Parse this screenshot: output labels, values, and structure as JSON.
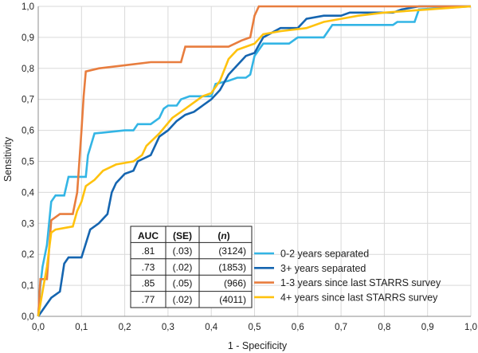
{
  "chart_data": {
    "type": "line",
    "xlabel": "1 - Specificity",
    "ylabel": "Sensitivity",
    "xlim": [
      0,
      1
    ],
    "ylim": [
      0,
      1
    ],
    "x_ticks": [
      "0,0",
      "0,1",
      "0,2",
      "0,3",
      "0,4",
      "0,5",
      "0,6",
      "0,7",
      "0,8",
      "0,9",
      "1,0"
    ],
    "y_ticks": [
      "0,0",
      "0,1",
      "0,2",
      "0,3",
      "0,4",
      "0,5",
      "0,6",
      "0,7",
      "0,8",
      "0,9",
      "1,0"
    ],
    "grid": true,
    "legend_placement": "bottom-right",
    "series": [
      {
        "name": "0-2 years separated",
        "color": "#33b5e5",
        "points": [
          [
            0,
            0
          ],
          [
            0.005,
            0.1
          ],
          [
            0.01,
            0.16
          ],
          [
            0.02,
            0.23
          ],
          [
            0.025,
            0.3
          ],
          [
            0.03,
            0.37
          ],
          [
            0.04,
            0.39
          ],
          [
            0.06,
            0.39
          ],
          [
            0.07,
            0.45
          ],
          [
            0.11,
            0.45
          ],
          [
            0.115,
            0.52
          ],
          [
            0.13,
            0.59
          ],
          [
            0.2,
            0.6
          ],
          [
            0.22,
            0.6
          ],
          [
            0.23,
            0.62
          ],
          [
            0.26,
            0.62
          ],
          [
            0.28,
            0.64
          ],
          [
            0.29,
            0.67
          ],
          [
            0.3,
            0.68
          ],
          [
            0.32,
            0.68
          ],
          [
            0.33,
            0.7
          ],
          [
            0.35,
            0.71
          ],
          [
            0.4,
            0.71
          ],
          [
            0.41,
            0.75
          ],
          [
            0.44,
            0.76
          ],
          [
            0.46,
            0.77
          ],
          [
            0.48,
            0.77
          ],
          [
            0.49,
            0.78
          ],
          [
            0.5,
            0.84
          ],
          [
            0.52,
            0.88
          ],
          [
            0.58,
            0.88
          ],
          [
            0.6,
            0.9
          ],
          [
            0.66,
            0.9
          ],
          [
            0.68,
            0.94
          ],
          [
            0.82,
            0.94
          ],
          [
            0.83,
            0.95
          ],
          [
            0.87,
            0.95
          ],
          [
            0.88,
            0.99
          ],
          [
            1,
            1
          ]
        ]
      },
      {
        "name": "3+ years separated",
        "color": "#1565b0",
        "points": [
          [
            0,
            0
          ],
          [
            0.01,
            0.02
          ],
          [
            0.02,
            0.04
          ],
          [
            0.03,
            0.06
          ],
          [
            0.05,
            0.08
          ],
          [
            0.06,
            0.17
          ],
          [
            0.07,
            0.19
          ],
          [
            0.1,
            0.19
          ],
          [
            0.12,
            0.28
          ],
          [
            0.14,
            0.3
          ],
          [
            0.16,
            0.33
          ],
          [
            0.17,
            0.4
          ],
          [
            0.18,
            0.43
          ],
          [
            0.2,
            0.46
          ],
          [
            0.22,
            0.47
          ],
          [
            0.23,
            0.5
          ],
          [
            0.26,
            0.52
          ],
          [
            0.28,
            0.58
          ],
          [
            0.3,
            0.6
          ],
          [
            0.32,
            0.63
          ],
          [
            0.34,
            0.65
          ],
          [
            0.36,
            0.66
          ],
          [
            0.38,
            0.68
          ],
          [
            0.4,
            0.7
          ],
          [
            0.42,
            0.73
          ],
          [
            0.44,
            0.78
          ],
          [
            0.46,
            0.81
          ],
          [
            0.48,
            0.84
          ],
          [
            0.5,
            0.85
          ],
          [
            0.52,
            0.9
          ],
          [
            0.56,
            0.93
          ],
          [
            0.6,
            0.93
          ],
          [
            0.62,
            0.96
          ],
          [
            0.66,
            0.97
          ],
          [
            0.7,
            0.97
          ],
          [
            0.72,
            0.98
          ],
          [
            0.82,
            0.98
          ],
          [
            0.84,
            0.99
          ],
          [
            0.88,
            1
          ],
          [
            1,
            1
          ]
        ]
      },
      {
        "name": "1-3 years since last STARRS survey",
        "color": "#e87d3e",
        "points": [
          [
            0,
            0
          ],
          [
            0.005,
            0.12
          ],
          [
            0.02,
            0.12
          ],
          [
            0.03,
            0.31
          ],
          [
            0.05,
            0.33
          ],
          [
            0.08,
            0.33
          ],
          [
            0.09,
            0.4
          ],
          [
            0.1,
            0.6
          ],
          [
            0.105,
            0.71
          ],
          [
            0.11,
            0.79
          ],
          [
            0.14,
            0.8
          ],
          [
            0.2,
            0.81
          ],
          [
            0.26,
            0.82
          ],
          [
            0.33,
            0.82
          ],
          [
            0.34,
            0.87
          ],
          [
            0.44,
            0.87
          ],
          [
            0.47,
            0.89
          ],
          [
            0.49,
            0.9
          ],
          [
            0.5,
            0.97
          ],
          [
            0.51,
            1
          ],
          [
            1,
            1
          ]
        ]
      },
      {
        "name": "4+ years since last STARRS survey",
        "color": "#ffc20e",
        "points": [
          [
            0,
            0
          ],
          [
            0.005,
            0.04
          ],
          [
            0.01,
            0.08
          ],
          [
            0.02,
            0.16
          ],
          [
            0.03,
            0.27
          ],
          [
            0.04,
            0.28
          ],
          [
            0.08,
            0.29
          ],
          [
            0.09,
            0.34
          ],
          [
            0.1,
            0.37
          ],
          [
            0.11,
            0.42
          ],
          [
            0.13,
            0.44
          ],
          [
            0.15,
            0.47
          ],
          [
            0.18,
            0.49
          ],
          [
            0.22,
            0.5
          ],
          [
            0.24,
            0.52
          ],
          [
            0.25,
            0.55
          ],
          [
            0.28,
            0.59
          ],
          [
            0.31,
            0.64
          ],
          [
            0.33,
            0.66
          ],
          [
            0.36,
            0.69
          ],
          [
            0.38,
            0.71
          ],
          [
            0.4,
            0.72
          ],
          [
            0.42,
            0.76
          ],
          [
            0.44,
            0.83
          ],
          [
            0.46,
            0.86
          ],
          [
            0.48,
            0.87
          ],
          [
            0.5,
            0.88
          ],
          [
            0.52,
            0.91
          ],
          [
            0.56,
            0.92
          ],
          [
            0.62,
            0.93
          ],
          [
            0.66,
            0.95
          ],
          [
            0.7,
            0.96
          ],
          [
            0.74,
            0.97
          ],
          [
            0.8,
            0.98
          ],
          [
            0.9,
            0.99
          ],
          [
            1,
            1
          ]
        ]
      }
    ],
    "table": {
      "headers": {
        "auc": "AUC",
        "se": "(SE)",
        "n_open": "(",
        "n_var": "n",
        "n_close": ")"
      },
      "rows": [
        {
          "auc": ".81",
          "se": "(.03)",
          "n": "(3124)"
        },
        {
          "auc": ".73",
          "se": "(.02)",
          "n": "(1853)"
        },
        {
          "auc": ".85",
          "se": "(.05)",
          "n": "(966)"
        },
        {
          "auc": ".77",
          "se": "(.02)",
          "n": "(4011)"
        }
      ]
    }
  }
}
